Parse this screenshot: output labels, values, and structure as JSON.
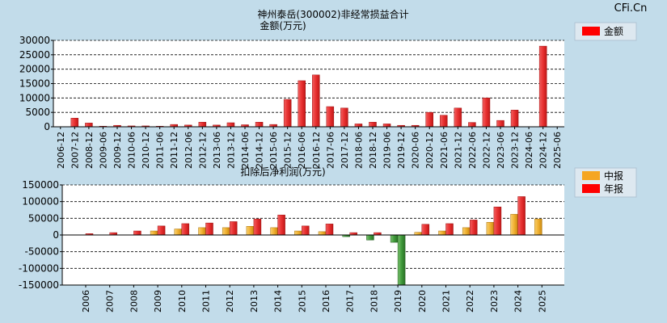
{
  "watermark": "CFi.Cn",
  "chart_data": [
    {
      "type": "bar",
      "title": "神州泰岳(300002)非经常损益合计",
      "subtitle": "金额(万元)",
      "legend": [
        {
          "name": "金额",
          "color": "#ff0000"
        }
      ],
      "legend_position": "top-right",
      "ylim": [
        0,
        30000
      ],
      "yticks": [
        "30000",
        "25000",
        "20000",
        "15000",
        "10000",
        "5000",
        "0"
      ],
      "categories": [
        "2006-12",
        "2007-12",
        "2008-12",
        "2009-06",
        "2009-12",
        "2010-06",
        "2010-12",
        "2011-06",
        "2011-12",
        "2012-06",
        "2012-12",
        "2013-06",
        "2013-12",
        "2014-06",
        "2014-12",
        "2015-06",
        "2015-12",
        "2016-06",
        "2016-12",
        "2017-06",
        "2017-12",
        "2018-06",
        "2018-12",
        "2019-06",
        "2019-12",
        "2020-06",
        "2020-12",
        "2021-06",
        "2021-12",
        "2022-06",
        "2022-12",
        "2023-06",
        "2023-12",
        "2024-06",
        "2024-12",
        "2025-06"
      ],
      "series": [
        {
          "name": "金额",
          "values": [
            0,
            3000,
            1300,
            200,
            500,
            300,
            300,
            200,
            800,
            600,
            1600,
            600,
            1400,
            700,
            1600,
            800,
            9500,
            16000,
            18000,
            7000,
            6500,
            1000,
            1600,
            1000,
            500,
            500,
            5000,
            4000,
            6500,
            1500,
            10000,
            2200,
            5800,
            0,
            28000,
            0
          ]
        }
      ],
      "grid": true
    },
    {
      "type": "bar",
      "title": "扣除后净利润(万元)",
      "legend": [
        {
          "name": "中报",
          "color": "#f5a623"
        },
        {
          "name": "年报",
          "color": "#ff0000"
        }
      ],
      "legend_position": "top-right",
      "ylim": [
        -150000,
        150000
      ],
      "yticks": [
        "150000",
        "100000",
        "50000",
        "0",
        "-50000",
        "-100000",
        "-150000"
      ],
      "categories": [
        "2006",
        "2007",
        "2008",
        "2009",
        "2010",
        "2011",
        "2012",
        "2013",
        "2014",
        "2015",
        "2016",
        "2017",
        "2018",
        "2019",
        "2020",
        "2021",
        "2022",
        "2023",
        "2024",
        "2025"
      ],
      "series": [
        {
          "name": "中报",
          "values": [
            0,
            0,
            0,
            12000,
            18000,
            22000,
            22000,
            26000,
            22000,
            12000,
            10000,
            -5000,
            -15000,
            -22000,
            8000,
            12000,
            22000,
            38000,
            62000,
            48000
          ]
        },
        {
          "name": "年报",
          "values": [
            4000,
            7000,
            12000,
            27000,
            34000,
            36000,
            40000,
            48000,
            60000,
            27000,
            33000,
            7000,
            7000,
            -150000,
            32000,
            34000,
            45000,
            84000,
            115000,
            null
          ]
        }
      ],
      "grid": true
    }
  ]
}
